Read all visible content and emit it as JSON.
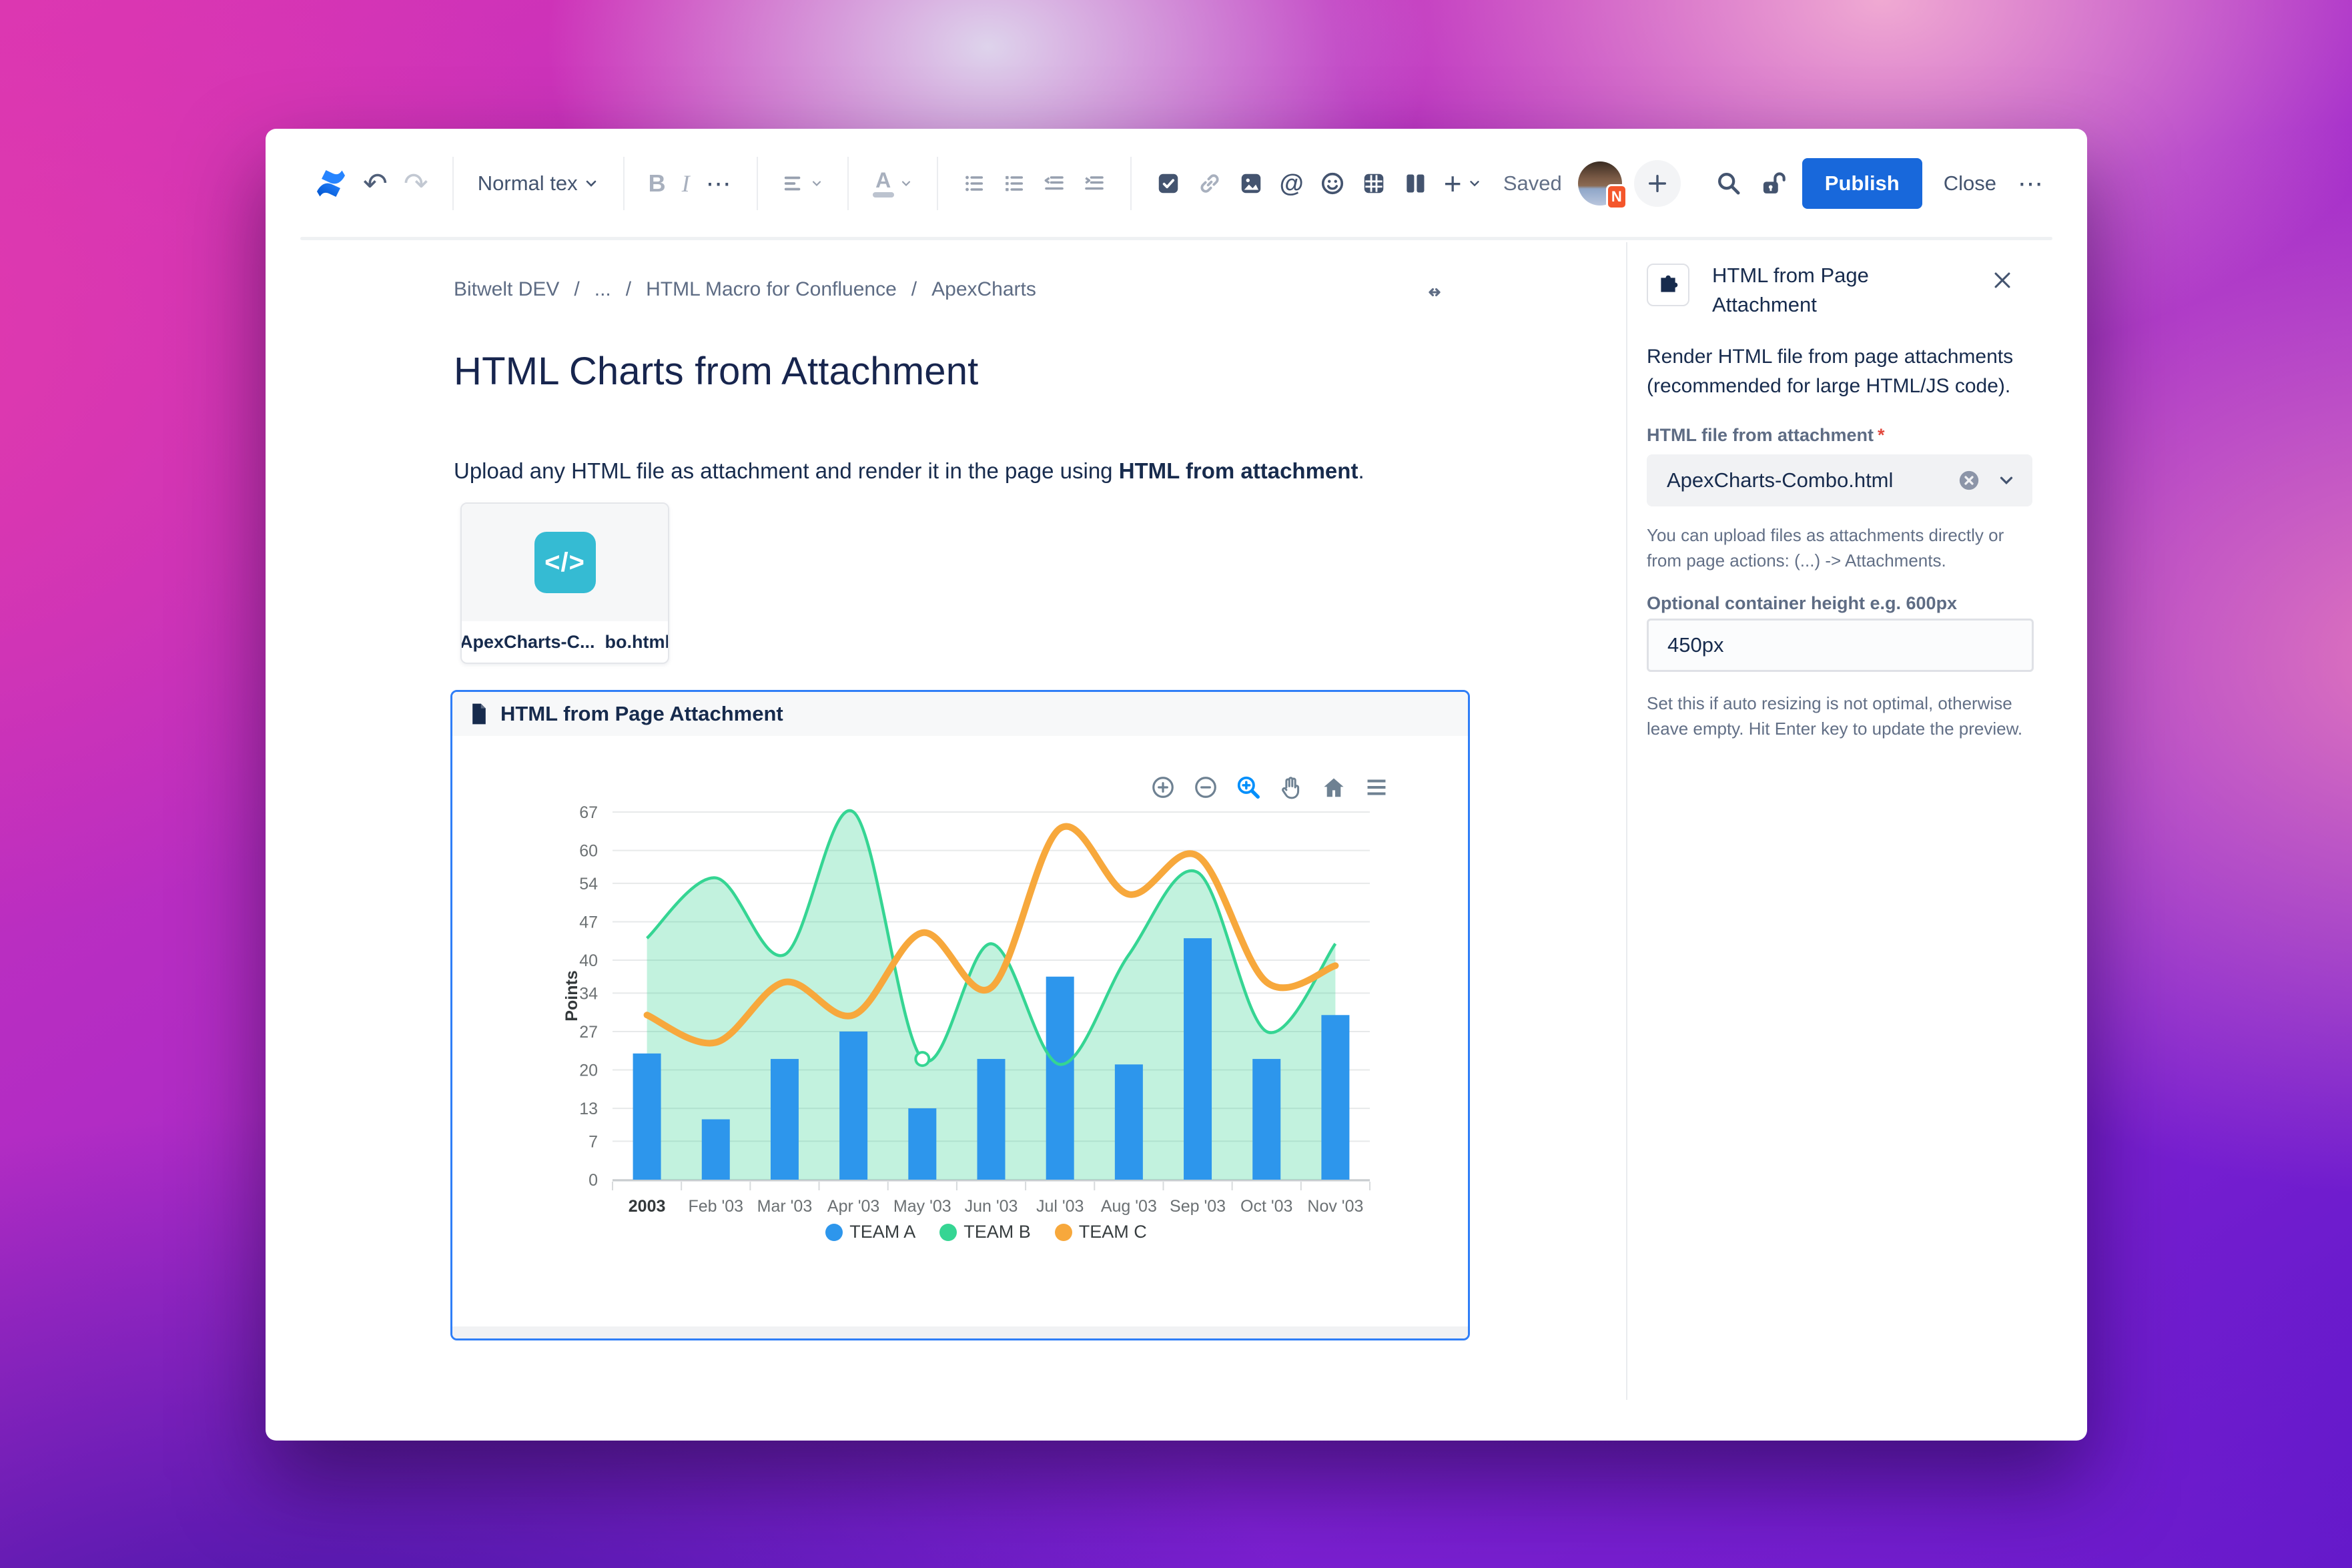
{
  "toolbar": {
    "style_dropdown": "Normal tex",
    "bold": "B",
    "italic": "I",
    "more": "⋯",
    "mention": "@",
    "insert_plus": "+",
    "color_letter": "A",
    "saved": "Saved",
    "avatar_badge": "N",
    "publish": "Publish",
    "close": "Close"
  },
  "breadcrumb": {
    "separator": "/",
    "items": [
      "Bitwelt DEV",
      "...",
      "HTML Macro for Confluence",
      "ApexCharts"
    ]
  },
  "page": {
    "title": "HTML Charts from Attachment",
    "body_text": "Upload any HTML file as attachment and render it in the page using ",
    "body_bold": "HTML from attachment",
    "body_suffix": "."
  },
  "attachment_card": {
    "filename": "ApexCharts-C...  bo.html",
    "code_glyph": "</>"
  },
  "macro_panel": {
    "title": "HTML from Page Attachment"
  },
  "chart_data": {
    "type": "combo",
    "categories": [
      "2003",
      "Feb '03",
      "Mar '03",
      "Apr '03",
      "May '03",
      "Jun '03",
      "Jul '03",
      "Aug '03",
      "Sep '03",
      "Oct '03",
      "Nov '03"
    ],
    "series": [
      {
        "name": "TEAM A",
        "type": "column",
        "color": "#2D96EC",
        "values": [
          23,
          11,
          22,
          27,
          13,
          22,
          37,
          21,
          44,
          22,
          30
        ]
      },
      {
        "name": "TEAM B",
        "type": "area",
        "color": "#35D593",
        "fill_opacity": 0.3,
        "values": [
          44,
          55,
          41,
          67,
          22,
          43,
          21,
          41,
          56,
          27,
          43
        ]
      },
      {
        "name": "TEAM C",
        "type": "line",
        "color": "#F7A83C",
        "values": [
          30,
          25,
          36,
          30,
          45,
          35,
          64,
          52,
          59,
          36,
          39
        ]
      }
    ],
    "ylabel": "Points",
    "yticks": [
      0,
      7,
      13,
      20,
      27,
      34,
      40,
      47,
      54,
      60,
      67
    ],
    "ylim": [
      0,
      67
    ],
    "legend_position": "bottom",
    "grid": true,
    "visible_marker": {
      "series_index": 1,
      "point_index": 4
    }
  },
  "sidebar": {
    "title_line1": "HTML from Page",
    "title_line2": "Attachment",
    "description": "Render HTML file from page attachments (recommended for large HTML/JS code).",
    "file_field": {
      "label": "HTML file from attachment",
      "required": "*",
      "value": "ApexCharts-Combo.html",
      "helper": "You can upload files as attachments directly or from page actions: (...) -> Attachments."
    },
    "height_field": {
      "label": "Optional container height e.g. 600px",
      "value": "450px",
      "helper": "Set this if auto resizing is not optimal, otherwise leave empty. Hit Enter key to update the preview."
    }
  }
}
